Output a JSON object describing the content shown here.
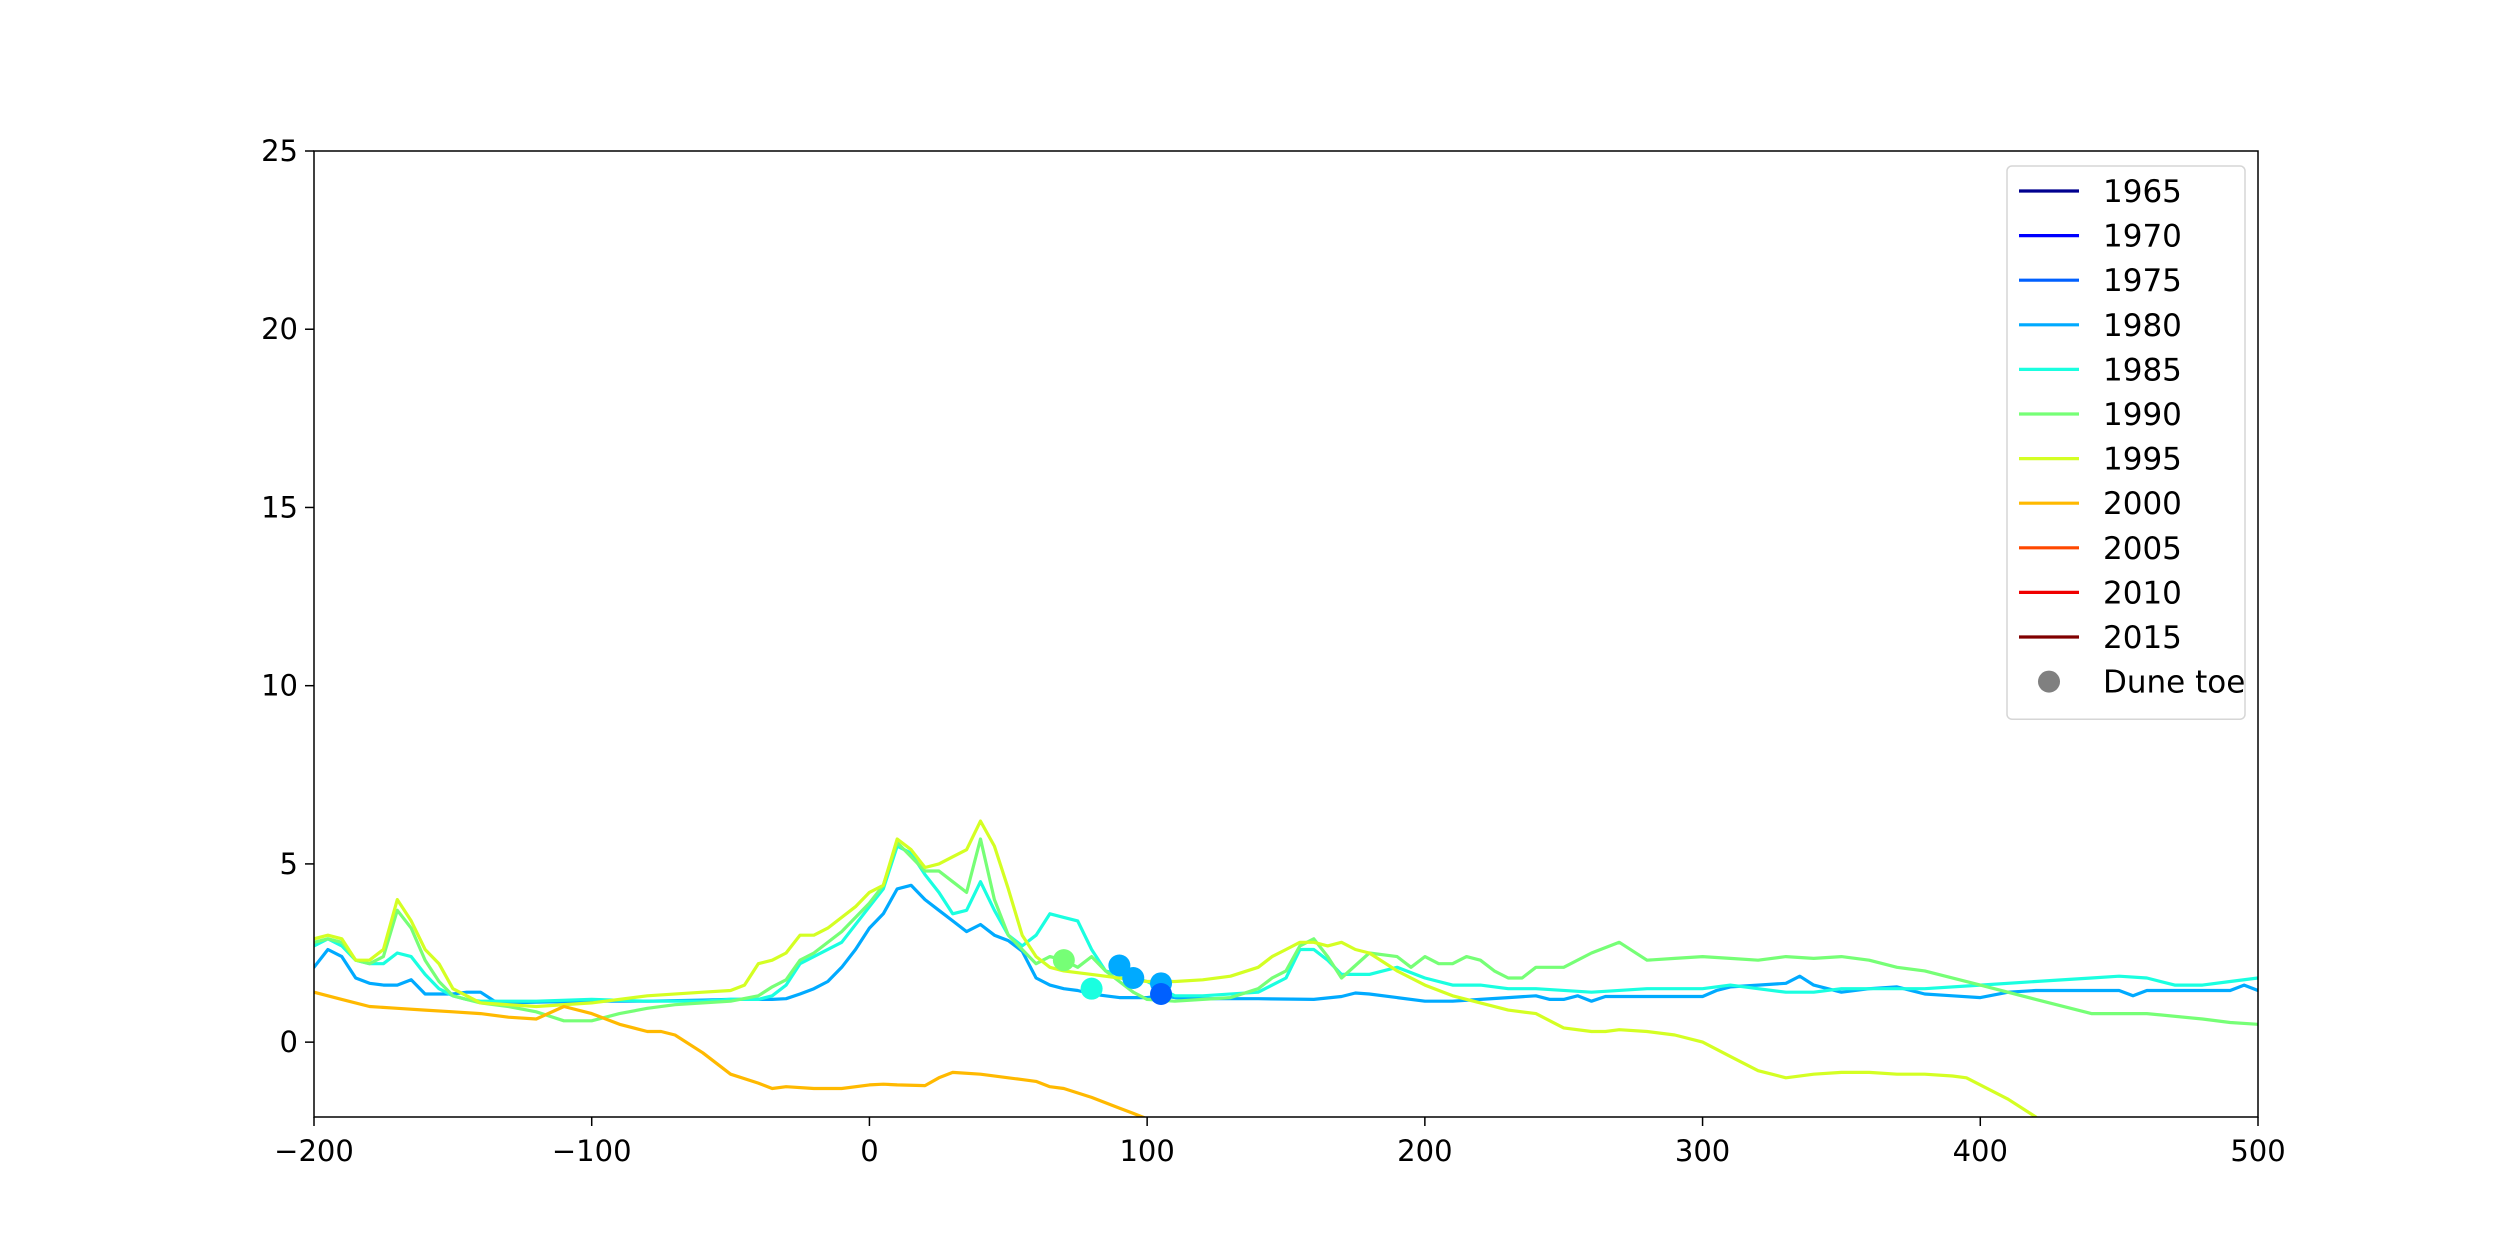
{
  "chart_data": {
    "type": "line",
    "title": "",
    "xlabel": "",
    "ylabel": "",
    "xlim": [
      -200,
      500
    ],
    "ylim": [
      -2.1,
      25
    ],
    "xticks": [
      -200,
      -100,
      0,
      100,
      200,
      300,
      400,
      500
    ],
    "yticks": [
      0,
      5,
      10,
      15,
      20,
      25
    ],
    "xtick_labels": [
      "−200",
      "−100",
      "0",
      "100",
      "200",
      "300",
      "400",
      "500"
    ],
    "ytick_labels": [
      "0",
      "5",
      "10",
      "15",
      "20",
      "25"
    ],
    "grid": false,
    "legend_position": "top-right",
    "series": [
      {
        "name": "1965",
        "color": "#00008f",
        "x": [],
        "y": []
      },
      {
        "name": "1970",
        "color": "#0000ff",
        "x": [],
        "y": []
      },
      {
        "name": "1975",
        "color": "#0060ff",
        "x": [],
        "y": []
      },
      {
        "name": "1980",
        "color": "#00aaff",
        "x": [
          -200,
          -195,
          -190,
          -185,
          -180,
          -175,
          -170,
          -165,
          -160,
          -155,
          -150,
          -145,
          -140,
          -135,
          -130,
          -120,
          -100,
          -80,
          -60,
          -50,
          -40,
          -35,
          -30,
          -25,
          -20,
          -15,
          -10,
          -5,
          0,
          5,
          10,
          15,
          20,
          25,
          30,
          35,
          40,
          45,
          50,
          55,
          60,
          65,
          70,
          75,
          80,
          85,
          90,
          95,
          100,
          105,
          110,
          120,
          140,
          160,
          170,
          175,
          180,
          190,
          200,
          210,
          220,
          230,
          240,
          245,
          250,
          255,
          260,
          265,
          270,
          280,
          290,
          300,
          305,
          310,
          320,
          330,
          335,
          340,
          350,
          360,
          370,
          380,
          390,
          400,
          410,
          420,
          440,
          450,
          455,
          460,
          470,
          480,
          490,
          495,
          500
        ],
        "y": [
          2.1,
          2.6,
          2.4,
          1.8,
          1.65,
          1.6,
          1.6,
          1.75,
          1.35,
          1.35,
          1.35,
          1.4,
          1.4,
          1.15,
          1.1,
          1.12,
          1.15,
          1.15,
          1.18,
          1.2,
          1.2,
          1.2,
          1.22,
          1.35,
          1.5,
          1.7,
          2.1,
          2.6,
          3.2,
          3.6,
          4.3,
          4.4,
          4.0,
          3.7,
          3.4,
          3.1,
          3.3,
          3.0,
          2.85,
          2.55,
          1.8,
          1.6,
          1.5,
          1.45,
          1.35,
          1.3,
          1.25,
          1.25,
          1.25,
          1.3,
          1.25,
          1.22,
          1.22,
          1.2,
          1.28,
          1.38,
          1.35,
          1.25,
          1.15,
          1.15,
          1.2,
          1.25,
          1.3,
          1.2,
          1.2,
          1.3,
          1.15,
          1.28,
          1.28,
          1.28,
          1.28,
          1.28,
          1.45,
          1.55,
          1.6,
          1.65,
          1.85,
          1.6,
          1.4,
          1.5,
          1.55,
          1.35,
          1.3,
          1.25,
          1.4,
          1.45,
          1.45,
          1.45,
          1.3,
          1.45,
          1.45,
          1.45,
          1.45,
          1.6,
          1.45
        ]
      },
      {
        "name": "1985",
        "color": "#1affe0",
        "x": [
          -200,
          -195,
          -190,
          -185,
          -180,
          -175,
          -170,
          -165,
          -160,
          -155,
          -150,
          -145,
          -140,
          -130,
          -120,
          -100,
          -80,
          -60,
          -50,
          -40,
          -35,
          -30,
          -25,
          -20,
          -10,
          0,
          5,
          10,
          15,
          20,
          25,
          30,
          35,
          40,
          45,
          50,
          55,
          60,
          65,
          70,
          75,
          80,
          85,
          90,
          95,
          100,
          110,
          120,
          140,
          150,
          155,
          160,
          165,
          170,
          180,
          190,
          200,
          210,
          220,
          230,
          240,
          260,
          280,
          300,
          310,
          320,
          330,
          340,
          350,
          360,
          380,
          400,
          420,
          440,
          450,
          460,
          470,
          480,
          490,
          500
        ],
        "y": [
          2.7,
          2.9,
          2.7,
          2.3,
          2.2,
          2.2,
          2.5,
          2.4,
          1.9,
          1.5,
          1.3,
          1.2,
          1.15,
          1.15,
          1.15,
          1.2,
          1.15,
          1.15,
          1.2,
          1.2,
          1.3,
          1.6,
          2.2,
          2.4,
          2.8,
          3.8,
          4.3,
          5.5,
          5.3,
          4.7,
          4.2,
          3.6,
          3.7,
          4.5,
          3.7,
          3.0,
          2.7,
          3.0,
          3.6,
          3.5,
          3.4,
          2.6,
          2.0,
          1.9,
          1.8,
          1.7,
          1.3,
          1.3,
          1.4,
          1.8,
          2.6,
          2.6,
          2.3,
          1.9,
          1.9,
          2.1,
          1.8,
          1.6,
          1.6,
          1.5,
          1.5,
          1.4,
          1.5,
          1.5,
          1.6,
          1.5,
          1.4,
          1.4,
          1.5,
          1.5,
          1.5,
          1.6,
          1.7,
          1.8,
          1.85,
          1.8,
          1.6,
          1.6,
          1.7,
          1.8
        ]
      },
      {
        "name": "1990",
        "color": "#76ff76",
        "x": [
          -200,
          -195,
          -190,
          -185,
          -180,
          -175,
          -170,
          -165,
          -160,
          -155,
          -150,
          -145,
          -140,
          -130,
          -120,
          -110,
          -100,
          -90,
          -80,
          -70,
          -60,
          -50,
          -40,
          -35,
          -30,
          -25,
          -20,
          -10,
          0,
          5,
          10,
          15,
          20,
          25,
          30,
          35,
          40,
          45,
          50,
          55,
          60,
          65,
          70,
          75,
          80,
          85,
          90,
          95,
          100,
          110,
          120,
          130,
          140,
          145,
          150,
          155,
          160,
          165,
          170,
          180,
          190,
          195,
          200,
          205,
          210,
          215,
          220,
          225,
          230,
          235,
          240,
          250,
          260,
          270,
          280,
          290,
          300,
          310,
          320,
          330,
          340,
          350,
          360,
          370,
          380,
          400,
          420,
          440,
          460,
          480,
          490,
          500
        ],
        "y": [
          2.8,
          2.9,
          2.8,
          2.3,
          2.2,
          2.4,
          3.7,
          3.2,
          2.3,
          1.7,
          1.3,
          1.2,
          1.1,
          1.0,
          0.85,
          0.6,
          0.6,
          0.8,
          0.95,
          1.05,
          1.1,
          1.15,
          1.3,
          1.55,
          1.75,
          2.3,
          2.5,
          3.1,
          3.9,
          4.4,
          5.6,
          5.2,
          4.8,
          4.8,
          4.5,
          4.2,
          5.7,
          4.0,
          3.0,
          2.6,
          2.2,
          2.4,
          2.3,
          2.1,
          2.4,
          2.0,
          1.7,
          1.4,
          1.2,
          1.15,
          1.2,
          1.25,
          1.5,
          1.8,
          2.0,
          2.7,
          2.9,
          2.4,
          1.8,
          2.5,
          2.4,
          2.1,
          2.4,
          2.2,
          2.2,
          2.4,
          2.3,
          2.0,
          1.8,
          1.8,
          2.1,
          2.1,
          2.5,
          2.8,
          2.3,
          2.35,
          2.4,
          2.35,
          2.3,
          2.4,
          2.35,
          2.4,
          2.3,
          2.1,
          2.0,
          1.6,
          1.2,
          0.8,
          0.8,
          0.65,
          0.55,
          0.5
        ]
      },
      {
        "name": "1995",
        "color": "#d4ff23",
        "x": [
          -200,
          -195,
          -190,
          -185,
          -180,
          -175,
          -170,
          -165,
          -160,
          -155,
          -150,
          -145,
          -140,
          -130,
          -120,
          -100,
          -80,
          -60,
          -50,
          -45,
          -40,
          -35,
          -30,
          -25,
          -20,
          -15,
          -10,
          -5,
          0,
          5,
          10,
          15,
          20,
          25,
          30,
          35,
          40,
          45,
          50,
          55,
          60,
          65,
          70,
          80,
          90,
          100,
          110,
          120,
          130,
          140,
          145,
          150,
          155,
          160,
          165,
          170,
          175,
          180,
          190,
          200,
          210,
          220,
          230,
          240,
          250,
          260,
          265,
          270,
          280,
          290,
          300,
          310,
          320,
          325,
          330,
          340,
          350,
          360,
          370,
          380,
          390,
          395,
          400,
          410,
          420
        ],
        "y": [
          2.9,
          3.0,
          2.9,
          2.3,
          2.3,
          2.6,
          4.0,
          3.4,
          2.6,
          2.2,
          1.5,
          1.3,
          1.1,
          1.05,
          1.0,
          1.1,
          1.3,
          1.4,
          1.45,
          1.6,
          2.2,
          2.3,
          2.5,
          3.0,
          3.0,
          3.2,
          3.5,
          3.8,
          4.2,
          4.4,
          5.7,
          5.4,
          4.9,
          5.0,
          5.2,
          5.4,
          6.2,
          5.5,
          4.3,
          3.0,
          2.4,
          2.1,
          2.0,
          1.9,
          1.8,
          1.7,
          1.7,
          1.75,
          1.85,
          2.1,
          2.4,
          2.6,
          2.8,
          2.8,
          2.7,
          2.8,
          2.6,
          2.5,
          2.0,
          1.6,
          1.3,
          1.1,
          0.9,
          0.8,
          0.4,
          0.3,
          0.3,
          0.35,
          0.3,
          0.2,
          0.0,
          -0.4,
          -0.8,
          -0.9,
          -1.0,
          -0.9,
          -0.85,
          -0.85,
          -0.9,
          -0.9,
          -0.95,
          -1.0,
          -1.2,
          -1.6,
          -2.1
        ]
      },
      {
        "name": "2000",
        "color": "#ffb900",
        "x": [
          -200,
          -190,
          -180,
          -170,
          -160,
          -150,
          -140,
          -130,
          -120,
          -110,
          -100,
          -90,
          -80,
          -75,
          -70,
          -60,
          -50,
          -40,
          -35,
          -30,
          -20,
          -10,
          0,
          5,
          10,
          20,
          25,
          30,
          40,
          50,
          55,
          60,
          65,
          70,
          80,
          90,
          95,
          100
        ],
        "y": [
          1.4,
          1.2,
          1.0,
          0.95,
          0.9,
          0.85,
          0.8,
          0.7,
          0.65,
          1.0,
          0.8,
          0.5,
          0.3,
          0.3,
          0.2,
          -0.3,
          -0.9,
          -1.15,
          -1.3,
          -1.25,
          -1.3,
          -1.3,
          -1.2,
          -1.18,
          -1.2,
          -1.22,
          -1.0,
          -0.85,
          -0.9,
          -1.0,
          -1.05,
          -1.1,
          -1.25,
          -1.3,
          -1.55,
          -1.85,
          -2.0,
          -2.15
        ]
      },
      {
        "name": "2005",
        "color": "#ff4800",
        "x": [],
        "y": []
      },
      {
        "name": "2010",
        "color": "#f00000",
        "x": [],
        "y": []
      },
      {
        "name": "2015",
        "color": "#800000",
        "x": [],
        "y": []
      }
    ],
    "dune_toe_label": "Dune toe",
    "dune_toe_legend_color": "#808080",
    "dune_toe_points": [
      {
        "x": 70,
        "y": 2.3,
        "color": "#76ff76"
      },
      {
        "x": 80,
        "y": 1.5,
        "color": "#1affe0"
      },
      {
        "x": 90,
        "y": 2.15,
        "color": "#00aaff"
      },
      {
        "x": 95,
        "y": 1.8,
        "color": "#00aaff"
      },
      {
        "x": 105,
        "y": 1.65,
        "color": "#00aaff"
      },
      {
        "x": 105,
        "y": 1.35,
        "color": "#0060ff"
      }
    ]
  }
}
